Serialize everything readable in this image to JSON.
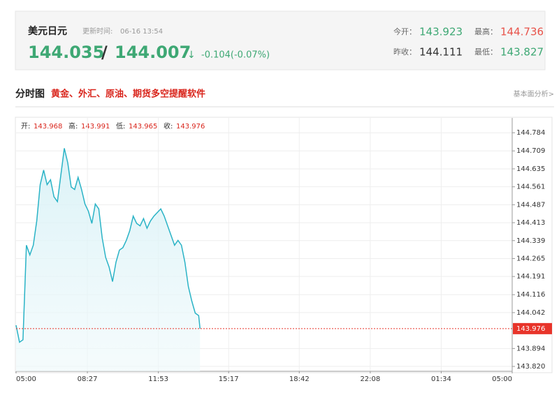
{
  "header": {
    "symbol": "美元日元",
    "update_label": "更新时间:",
    "update_time": "06-16 13:54",
    "last_price": 144.035,
    "separator": "/",
    "price2": 144.007,
    "arrow": "↓",
    "change": "-0.104(-0.07%)",
    "open_label": "今开：",
    "open": 143.923,
    "high_label": "最高：",
    "high": 144.736,
    "prev_close_label": "昨收：",
    "prev_close": 144.111,
    "low_label": "最低：",
    "low": 143.827
  },
  "section": {
    "title": "分时图",
    "promo": "黄金、外汇、原油、期货多空提醒软件",
    "link": "基本面分析>"
  },
  "chart_data": {
    "type": "line",
    "open_label": "开:",
    "open": 143.968,
    "high_label": "高:",
    "high": 143.991,
    "low_label": "低:",
    "low": 143.965,
    "close_label": "收:",
    "close": 143.976,
    "color": "#2ab3c6",
    "x": [
      "05:00",
      "05:10",
      "05:20",
      "05:30",
      "05:40",
      "05:50",
      "06:00",
      "06:10",
      "06:20",
      "06:30",
      "06:40",
      "06:50",
      "07:00",
      "07:10",
      "07:20",
      "07:30",
      "07:40",
      "07:50",
      "08:00",
      "08:10",
      "08:20",
      "08:30",
      "08:40",
      "08:50",
      "09:00",
      "09:10",
      "09:20",
      "09:30",
      "09:40",
      "09:50",
      "10:00",
      "10:10",
      "10:20",
      "10:30",
      "10:40",
      "10:50",
      "11:00",
      "11:10",
      "11:20",
      "11:30",
      "11:40",
      "11:50",
      "12:00",
      "12:10",
      "12:20",
      "12:30",
      "12:40",
      "12:50",
      "13:00",
      "13:10",
      "13:20",
      "13:30",
      "13:40",
      "13:50",
      "13:54"
    ],
    "values": [
      143.99,
      143.92,
      143.93,
      144.32,
      144.28,
      144.32,
      144.42,
      144.57,
      144.63,
      144.57,
      144.59,
      144.52,
      144.5,
      144.61,
      144.72,
      144.66,
      144.56,
      144.55,
      144.6,
      144.55,
      144.49,
      144.46,
      144.41,
      144.49,
      144.47,
      144.35,
      144.27,
      144.23,
      144.17,
      144.25,
      144.3,
      144.31,
      144.34,
      144.38,
      144.44,
      144.41,
      144.4,
      144.43,
      144.39,
      144.42,
      144.44,
      144.455,
      144.47,
      144.44,
      144.4,
      144.36,
      144.32,
      144.34,
      144.32,
      144.25,
      144.15,
      144.09,
      144.04,
      144.03,
      143.976
    ],
    "xticks": [
      "05:00",
      "08:27",
      "11:53",
      "15:17",
      "18:42",
      "22:08",
      "01:34",
      "05:00"
    ],
    "ylim": [
      143.8,
      144.845
    ],
    "yticks": [
      {
        "value": 143.82,
        "label": "143.820"
      },
      143.894,
      144.042,
      144.116,
      144.191,
      144.265,
      144.339,
      144.413,
      144.487,
      144.561,
      144.635,
      144.709,
      144.784
    ],
    "grid": true
  }
}
